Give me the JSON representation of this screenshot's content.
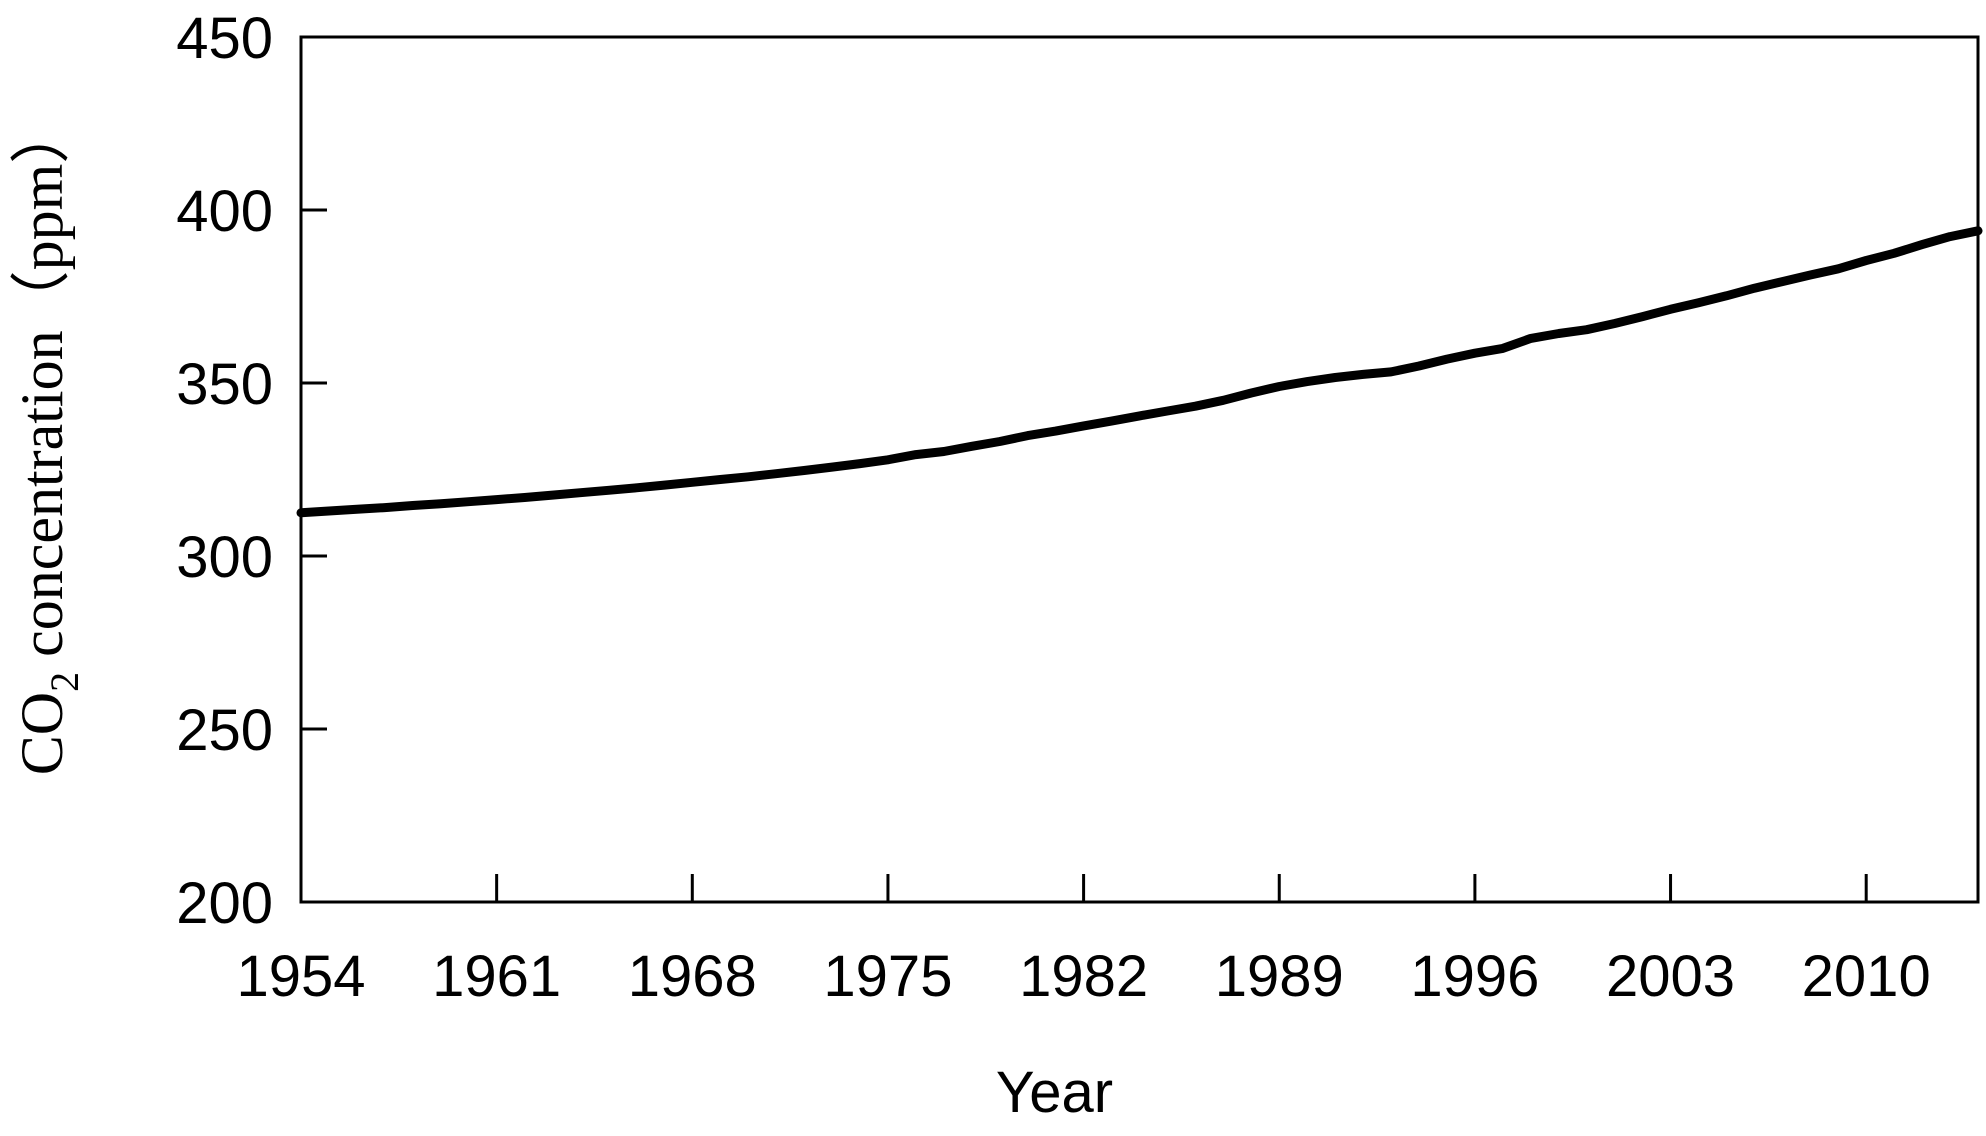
{
  "chart_data": {
    "type": "line",
    "title": "",
    "xlabel": "Year",
    "ylabel": {
      "main": "CO",
      "subscript": "2",
      "rest": " concentration（ppm）"
    },
    "ylim": [
      200,
      450
    ],
    "xlim": [
      1954,
      2014
    ],
    "x_ticks": [
      "1954",
      "1961",
      "1968",
      "1975",
      "1982",
      "1989",
      "1996",
      "2003",
      "2010"
    ],
    "y_ticks": [
      "200",
      "250",
      "300",
      "350",
      "400",
      "450"
    ],
    "grid": false,
    "legend": "none",
    "line_color": "#000000",
    "series": [
      {
        "x": [
          1954,
          1955,
          1956,
          1957,
          1958,
          1959,
          1960,
          1961,
          1962,
          1963,
          1964,
          1965,
          1966,
          1967,
          1968,
          1969,
          1970,
          1971,
          1972,
          1973,
          1974,
          1975,
          1976,
          1977,
          1978,
          1979,
          1980,
          1981,
          1982,
          1983,
          1984,
          1985,
          1986,
          1987,
          1988,
          1989,
          1990,
          1991,
          1992,
          1993,
          1994,
          1995,
          1996,
          1997,
          1998,
          1999,
          2000,
          2001,
          2002,
          2003,
          2004,
          2005,
          2006,
          2007,
          2008,
          2009,
          2010,
          2011,
          2012,
          2013,
          2014
        ],
        "values": [
          312.5,
          313.0,
          313.5,
          314.0,
          314.6,
          315.1,
          315.7,
          316.3,
          316.9,
          317.6,
          318.3,
          319.0,
          319.7,
          320.5,
          321.3,
          322.1,
          322.9,
          323.8,
          324.7,
          325.7,
          326.7,
          327.8,
          329.3,
          330.2,
          331.7,
          333.1,
          334.8,
          336.1,
          337.6,
          339.0,
          340.5,
          341.9,
          343.3,
          345.0,
          347.1,
          349.0,
          350.4,
          351.6,
          352.5,
          353.2,
          354.9,
          356.9,
          358.6,
          360.0,
          362.9,
          364.3,
          365.4,
          367.2,
          369.2,
          371.3,
          373.2,
          375.2,
          377.4,
          379.3,
          381.2,
          383.0,
          385.4,
          387.5,
          390.0,
          392.3,
          394.0
        ]
      }
    ]
  }
}
